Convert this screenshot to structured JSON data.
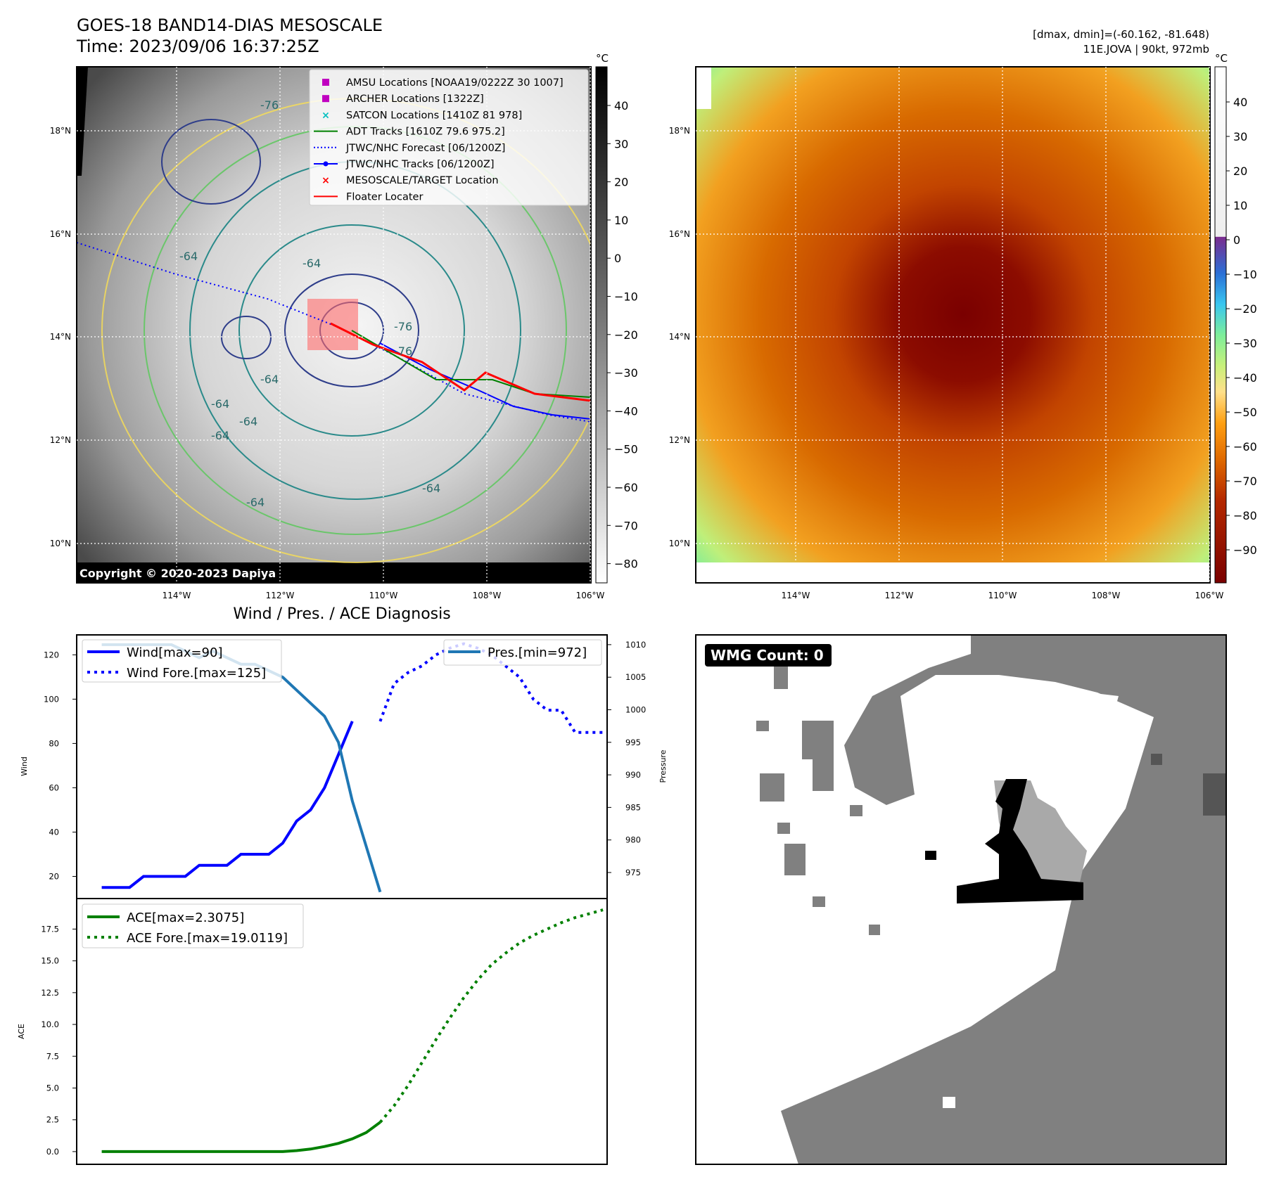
{
  "header": {
    "title": "GOES-18 BAND14-DIAS MESOSCALE",
    "time": "Time: 2023/09/06 16:37:25Z",
    "dmax_dmin": "[dmax, dmin]=(-60.162, -81.648)",
    "storm": "11E.JOVA | 90kt, 972mb"
  },
  "copyright": "Copyright © 2020-2023 Dapiya",
  "map_axes": {
    "lon_ticks": [
      "114°W",
      "112°W",
      "110°W",
      "108°W",
      "106°W"
    ],
    "lat_ticks": [
      "18°N",
      "16°N",
      "14°N",
      "12°N",
      "10°N"
    ]
  },
  "legend": [
    {
      "label": "AMSU Locations [NOAA19/0222Z 30 1007]",
      "color": "#c000c0",
      "marker": "square"
    },
    {
      "label": "ARCHER Locations [1322Z]",
      "color": "#c000c0",
      "marker": "square"
    },
    {
      "label": "SATCON Locations [1410Z 81 978]",
      "color": "#00bfbf",
      "marker": "x"
    },
    {
      "label": "ADT Tracks [1610Z 79.6 975.2]",
      "color": "#008000",
      "marker": "line"
    },
    {
      "label": "JTWC/NHC Forecast [06/1200Z]",
      "color": "#0000ff",
      "marker": "dotted"
    },
    {
      "label": "JTWC/NHC Tracks [06/1200Z]",
      "color": "#0000ff",
      "marker": "line-dot"
    },
    {
      "label": "MESOSCALE/TARGET Location",
      "color": "#ff0000",
      "marker": "x"
    },
    {
      "label": "Floater Locater",
      "color": "#ff0000",
      "marker": "line"
    }
  ],
  "contour_labels": [
    "-76",
    "-64",
    "-76",
    "-64",
    "-64",
    "-64",
    "-64",
    "-64",
    "-64",
    "-76",
    "-64"
  ],
  "colorbar_gray": {
    "unit": "°C",
    "ticks": [
      "40",
      "30",
      "20",
      "10",
      "0",
      "−10",
      "−20",
      "−30",
      "−40",
      "−50",
      "−60",
      "−70",
      "−80"
    ]
  },
  "colorbar_color": {
    "unit": "°C",
    "ticks": [
      "40",
      "30",
      "20",
      "10",
      "0",
      "−10",
      "−20",
      "−30",
      "−40",
      "−50",
      "−60",
      "−70",
      "−80",
      "−90"
    ]
  },
  "wmg": {
    "label": "WMG Count: 0"
  },
  "diagnosis_title": "Wind / Pres. / ACE Diagnosis",
  "chart_data": [
    {
      "type": "line",
      "title": "Wind / Pres. / ACE Diagnosis",
      "ylabel": "Wind",
      "ylabel_right": "Pressure",
      "ylim": [
        10,
        129
      ],
      "ylim_right": [
        971,
        1011.5
      ],
      "yticks": [
        20,
        40,
        60,
        80,
        100,
        120
      ],
      "yticks_right": [
        975,
        980,
        985,
        990,
        995,
        1000,
        1005,
        1010
      ],
      "xlim": [
        -1.8,
        36.3
      ],
      "series": [
        {
          "name": "Wind[max=90]",
          "color": "#0000ff",
          "style": "solid",
          "axis": "left",
          "x": [
            0,
            1,
            2,
            3,
            4,
            5,
            6,
            7,
            8,
            9,
            10,
            11,
            12,
            13,
            14,
            15,
            16,
            17,
            18,
            19,
            20
          ],
          "y": [
            15,
            15,
            15,
            20,
            20,
            20,
            20,
            25,
            25,
            25,
            30,
            30,
            30,
            35,
            45,
            50,
            60,
            75,
            90,
            null,
            null
          ]
        },
        {
          "name": "Wind Fore.[max=125]",
          "color": "#0000ff",
          "style": "dotted",
          "axis": "left",
          "x": [
            20,
            21,
            22,
            23,
            24,
            25,
            26,
            27,
            28,
            29,
            30,
            31,
            32,
            33,
            34,
            35,
            36
          ],
          "y": [
            90,
            107,
            112,
            115,
            120,
            123,
            125,
            123,
            120,
            115,
            110,
            100,
            95,
            95,
            85,
            85,
            85
          ]
        },
        {
          "name": "Pres.[min=972]",
          "color": "#1f77b4",
          "style": "solid",
          "axis": "right",
          "x": [
            0,
            1,
            2,
            3,
            4,
            5,
            6,
            7,
            8,
            9,
            10,
            11,
            12,
            13,
            14,
            15,
            16,
            17,
            18,
            19,
            20
          ],
          "y": [
            1010,
            1010,
            1010,
            1010,
            1010,
            1010,
            1009,
            1008,
            1009,
            1008,
            1007,
            1007,
            1006,
            1005,
            1003,
            1001,
            999,
            995,
            986,
            979,
            972
          ]
        }
      ]
    },
    {
      "type": "line",
      "ylabel": "ACE",
      "ylim": [
        -1.0,
        19.9
      ],
      "yticks": [
        0.0,
        2.5,
        5.0,
        7.5,
        10.0,
        12.5,
        15.0,
        17.5
      ],
      "series": [
        {
          "name": "ACE[max=2.3075]",
          "color": "#008000",
          "style": "solid",
          "x": [
            0,
            1,
            2,
            3,
            4,
            5,
            6,
            7,
            8,
            9,
            10,
            11,
            12,
            13,
            14,
            15,
            16,
            17,
            18,
            19,
            20
          ],
          "y": [
            0,
            0,
            0,
            0,
            0,
            0,
            0,
            0,
            0,
            0,
            0,
            0,
            0,
            0,
            0.08,
            0.2,
            0.4,
            0.65,
            1.0,
            1.5,
            2.3075
          ]
        },
        {
          "name": "ACE Fore.[max=19.0119]",
          "color": "#008000",
          "style": "dotted",
          "x": [
            20,
            21,
            22,
            23,
            24,
            25,
            26,
            27,
            28,
            29,
            30,
            31,
            32,
            33,
            34,
            35,
            36
          ],
          "y": [
            2.3075,
            3.6,
            5.2,
            7.0,
            8.8,
            10.5,
            12.1,
            13.5,
            14.7,
            15.6,
            16.4,
            17.0,
            17.5,
            18.0,
            18.4,
            18.7,
            19.0119
          ]
        }
      ]
    }
  ]
}
